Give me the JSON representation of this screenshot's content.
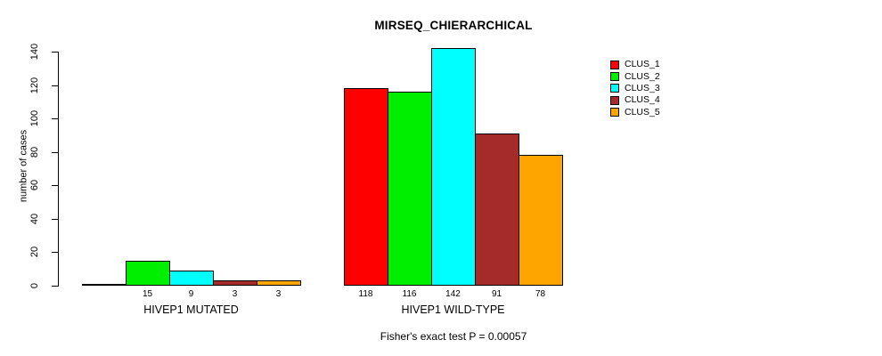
{
  "chart_data": {
    "type": "bar",
    "title": "MIRSEQ_CHIERARCHICAL",
    "ylabel": "number of cases",
    "xlabel": "",
    "ylim": [
      0,
      140
    ],
    "yticks": [
      0,
      20,
      40,
      60,
      80,
      100,
      120,
      140
    ],
    "grid": false,
    "legend_position": "top-right",
    "categories": [
      "HIVEP1 MUTATED",
      "HIVEP1 WILD-TYPE"
    ],
    "series": [
      {
        "name": "CLUS_1",
        "color": "#FF0000",
        "values": [
          0,
          118
        ]
      },
      {
        "name": "CLUS_2",
        "color": "#00EE00",
        "values": [
          15,
          116
        ]
      },
      {
        "name": "CLUS_3",
        "color": "#00FFFF",
        "values": [
          9,
          142
        ]
      },
      {
        "name": "CLUS_4",
        "color": "#A52A2A",
        "values": [
          3,
          91
        ]
      },
      {
        "name": "CLUS_5",
        "color": "#FFA500",
        "values": [
          3,
          78
        ]
      }
    ],
    "bar_value_labels": [
      [
        "",
        "15",
        "9",
        "3",
        "3"
      ],
      [
        "118",
        "116",
        "142",
        "91",
        "78"
      ]
    ],
    "annotation": "Fisher's exact test P = 0.00057"
  }
}
